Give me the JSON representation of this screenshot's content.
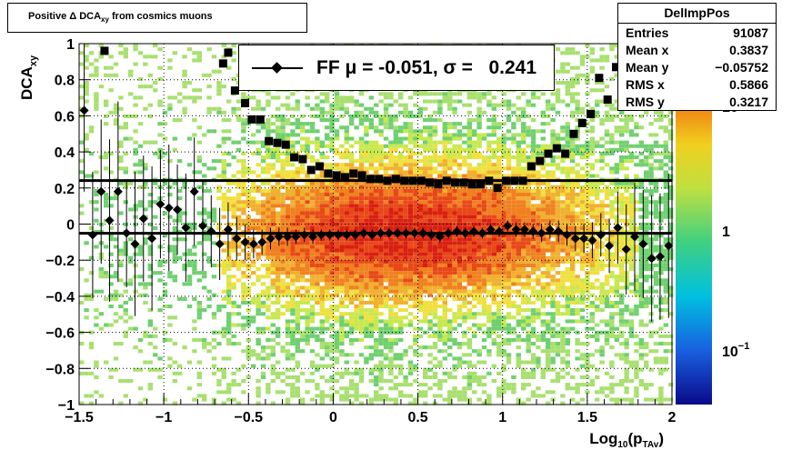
{
  "title": "Positive Δ DCA",
  "title_sub": "xy",
  "title_suffix": " from cosmics muons",
  "stats": {
    "name": "DelImpPos",
    "rows": [
      {
        "label": "Entries",
        "value": "91087"
      },
      {
        "label": "Mean x",
        "value": "0.3837"
      },
      {
        "label": "Mean y",
        "value": "−0.05752"
      },
      {
        "label": "RMS x",
        "value": "0.5866"
      },
      {
        "label": "RMS y",
        "value": "0.3217"
      }
    ]
  },
  "legend": {
    "text": "FF μ = -0.051, σ =   0.241"
  },
  "colors": {
    "marker": "#000000",
    "frame": "#000000"
  },
  "chart_data": {
    "type": "heatmap",
    "xlabel": "Log",
    "xlabel_sub": "10",
    "xlabel_mid": "(p",
    "xlabel_sub2": "TAv",
    "xlabel_end": ")",
    "ylabel": "DCA",
    "ylabel_sub": "xy",
    "xlim": [
      -1.5,
      2
    ],
    "ylim": [
      -1,
      1
    ],
    "xticks": [
      -1.5,
      -1,
      -0.5,
      0,
      0.5,
      1,
      1.5,
      2
    ],
    "xtick_labels": [
      "−1.5",
      "−1",
      "−0.5",
      "0",
      "0.5",
      "1",
      "1.5",
      "2"
    ],
    "yticks": [
      -1,
      -0.8,
      -0.6,
      -0.4,
      -0.2,
      0,
      0.2,
      0.4,
      0.6,
      0.8,
      1
    ],
    "ytick_labels": [
      "−1",
      "−0.8",
      "−0.6",
      "−0.4",
      "−0.2",
      "0",
      "0.2",
      "0.4",
      "0.6",
      "0.8",
      "1"
    ],
    "grid": true,
    "log_z": true,
    "z_tick_labels": [
      "10",
      "1",
      "10"
    ],
    "z_tick_sup": [
      "",
      "",
      "−1"
    ],
    "hlines": [
      0.241,
      -0.051
    ],
    "sigma_points": [
      {
        "x": -1.35,
        "y": 0.96
      },
      {
        "x": -0.65,
        "y": 0.89
      },
      {
        "x": -0.62,
        "y": 0.95
      },
      {
        "x": -0.58,
        "y": 0.74
      },
      {
        "x": -0.52,
        "y": 0.67
      },
      {
        "x": -0.48,
        "y": 0.58
      },
      {
        "x": -0.43,
        "y": 0.58
      },
      {
        "x": -0.38,
        "y": 0.46
      },
      {
        "x": -0.33,
        "y": 0.45
      },
      {
        "x": -0.28,
        "y": 0.44
      },
      {
        "x": -0.23,
        "y": 0.37
      },
      {
        "x": -0.18,
        "y": 0.36
      },
      {
        "x": -0.13,
        "y": 0.3
      },
      {
        "x": -0.08,
        "y": 0.32
      },
      {
        "x": -0.03,
        "y": 0.28
      },
      {
        "x": 0.02,
        "y": 0.27
      },
      {
        "x": 0.07,
        "y": 0.26
      },
      {
        "x": 0.12,
        "y": 0.28
      },
      {
        "x": 0.17,
        "y": 0.27
      },
      {
        "x": 0.22,
        "y": 0.25
      },
      {
        "x": 0.27,
        "y": 0.25
      },
      {
        "x": 0.32,
        "y": 0.24
      },
      {
        "x": 0.37,
        "y": 0.25
      },
      {
        "x": 0.42,
        "y": 0.24
      },
      {
        "x": 0.47,
        "y": 0.24
      },
      {
        "x": 0.52,
        "y": 0.24
      },
      {
        "x": 0.57,
        "y": 0.23
      },
      {
        "x": 0.62,
        "y": 0.22
      },
      {
        "x": 0.67,
        "y": 0.24
      },
      {
        "x": 0.72,
        "y": 0.23
      },
      {
        "x": 0.77,
        "y": 0.23
      },
      {
        "x": 0.82,
        "y": 0.22
      },
      {
        "x": 0.87,
        "y": 0.22
      },
      {
        "x": 0.92,
        "y": 0.24
      },
      {
        "x": 0.97,
        "y": 0.2
      },
      {
        "x": 1.02,
        "y": 0.24
      },
      {
        "x": 1.07,
        "y": 0.24
      },
      {
        "x": 1.12,
        "y": 0.24
      },
      {
        "x": 1.17,
        "y": 0.32
      },
      {
        "x": 1.22,
        "y": 0.35
      },
      {
        "x": 1.27,
        "y": 0.39
      },
      {
        "x": 1.32,
        "y": 0.42
      },
      {
        "x": 1.37,
        "y": 0.39
      },
      {
        "x": 1.42,
        "y": 0.5
      },
      {
        "x": 1.47,
        "y": 0.56
      },
      {
        "x": 1.52,
        "y": 0.61
      },
      {
        "x": 1.57,
        "y": 0.81
      },
      {
        "x": 1.62,
        "y": 0.69
      },
      {
        "x": 1.67,
        "y": 0.87
      },
      {
        "x": 1.72,
        "y": 0.82
      },
      {
        "x": 1.77,
        "y": 0.92
      },
      {
        "x": 1.82,
        "y": 0.95
      },
      {
        "x": 1.87,
        "y": 0.73
      },
      {
        "x": 1.92,
        "y": 0.86
      }
    ],
    "mean_points": [
      {
        "x": -1.47,
        "y": 0.63,
        "err": 0.45
      },
      {
        "x": -1.42,
        "y": -0.06,
        "err": 0.35
      },
      {
        "x": -1.37,
        "y": 0.18,
        "err": 0.4
      },
      {
        "x": -1.32,
        "y": 0.02,
        "err": 0.45
      },
      {
        "x": -1.27,
        "y": 0.18,
        "err": 0.5
      },
      {
        "x": -1.22,
        "y": -0.05,
        "err": 0.3
      },
      {
        "x": -1.17,
        "y": -0.11,
        "err": 0.4
      },
      {
        "x": -1.12,
        "y": 0.03,
        "err": 0.35
      },
      {
        "x": -1.07,
        "y": -0.08,
        "err": 0.4
      },
      {
        "x": -1.02,
        "y": 0.11,
        "err": 0.3
      },
      {
        "x": -0.97,
        "y": 0.09,
        "err": 0.35
      },
      {
        "x": -0.92,
        "y": 0.08,
        "err": 0.25
      },
      {
        "x": -0.87,
        "y": -0.02,
        "err": 0.3
      },
      {
        "x": -0.82,
        "y": 0.18,
        "err": 0.3
      },
      {
        "x": -0.77,
        "y": -0.01,
        "err": 0.25
      },
      {
        "x": -0.72,
        "y": -0.04,
        "err": 0.2
      },
      {
        "x": -0.67,
        "y": -0.11,
        "err": 0.2
      },
      {
        "x": -0.62,
        "y": -0.03,
        "err": 0.15
      },
      {
        "x": -0.57,
        "y": -0.08,
        "err": 0.12
      },
      {
        "x": -0.52,
        "y": -0.1,
        "err": 0.1
      },
      {
        "x": -0.47,
        "y": -0.11,
        "err": 0.08
      },
      {
        "x": -0.42,
        "y": -0.1,
        "err": 0.07
      },
      {
        "x": -0.37,
        "y": -0.08,
        "err": 0.06
      },
      {
        "x": -0.32,
        "y": -0.07,
        "err": 0.05
      },
      {
        "x": -0.27,
        "y": -0.07,
        "err": 0.05
      },
      {
        "x": -0.22,
        "y": -0.07,
        "err": 0.04
      },
      {
        "x": -0.17,
        "y": -0.06,
        "err": 0.04
      },
      {
        "x": -0.12,
        "y": -0.07,
        "err": 0.04
      },
      {
        "x": -0.07,
        "y": -0.06,
        "err": 0.03
      },
      {
        "x": -0.02,
        "y": -0.06,
        "err": 0.03
      },
      {
        "x": 0.03,
        "y": -0.06,
        "err": 0.03
      },
      {
        "x": 0.08,
        "y": -0.06,
        "err": 0.03
      },
      {
        "x": 0.13,
        "y": -0.06,
        "err": 0.03
      },
      {
        "x": 0.18,
        "y": -0.05,
        "err": 0.03
      },
      {
        "x": 0.23,
        "y": -0.06,
        "err": 0.03
      },
      {
        "x": 0.28,
        "y": -0.05,
        "err": 0.03
      },
      {
        "x": 0.33,
        "y": -0.05,
        "err": 0.03
      },
      {
        "x": 0.38,
        "y": -0.05,
        "err": 0.03
      },
      {
        "x": 0.43,
        "y": -0.05,
        "err": 0.03
      },
      {
        "x": 0.48,
        "y": -0.05,
        "err": 0.03
      },
      {
        "x": 0.53,
        "y": -0.05,
        "err": 0.03
      },
      {
        "x": 0.58,
        "y": -0.06,
        "err": 0.03
      },
      {
        "x": 0.63,
        "y": -0.07,
        "err": 0.03
      },
      {
        "x": 0.68,
        "y": -0.05,
        "err": 0.03
      },
      {
        "x": 0.73,
        "y": -0.04,
        "err": 0.03
      },
      {
        "x": 0.78,
        "y": -0.05,
        "err": 0.03
      },
      {
        "x": 0.83,
        "y": -0.04,
        "err": 0.03
      },
      {
        "x": 0.88,
        "y": -0.05,
        "err": 0.03
      },
      {
        "x": 0.93,
        "y": -0.03,
        "err": 0.03
      },
      {
        "x": 0.98,
        "y": -0.04,
        "err": 0.03
      },
      {
        "x": 1.03,
        "y": -0.01,
        "err": 0.03
      },
      {
        "x": 1.08,
        "y": -0.03,
        "err": 0.04
      },
      {
        "x": 1.13,
        "y": -0.03,
        "err": 0.04
      },
      {
        "x": 1.18,
        "y": -0.04,
        "err": 0.04
      },
      {
        "x": 1.23,
        "y": -0.05,
        "err": 0.05
      },
      {
        "x": 1.28,
        "y": -0.03,
        "err": 0.05
      },
      {
        "x": 1.33,
        "y": -0.04,
        "err": 0.06
      },
      {
        "x": 1.38,
        "y": -0.06,
        "err": 0.06
      },
      {
        "x": 1.43,
        "y": -0.08,
        "err": 0.07
      },
      {
        "x": 1.48,
        "y": -0.08,
        "err": 0.08
      },
      {
        "x": 1.53,
        "y": -0.09,
        "err": 0.1
      },
      {
        "x": 1.58,
        "y": -0.06,
        "err": 0.12
      },
      {
        "x": 1.63,
        "y": -0.12,
        "err": 0.15
      },
      {
        "x": 1.68,
        "y": -0.02,
        "err": 0.2
      },
      {
        "x": 1.73,
        "y": -0.14,
        "err": 0.25
      },
      {
        "x": 1.78,
        "y": -0.07,
        "err": 0.3
      },
      {
        "x": 1.83,
        "y": -0.11,
        "err": 0.3
      },
      {
        "x": 1.88,
        "y": -0.19,
        "err": 0.35
      },
      {
        "x": 1.93,
        "y": -0.18,
        "err": 0.35
      },
      {
        "x": 1.98,
        "y": -0.12,
        "err": 0.4
      }
    ]
  }
}
